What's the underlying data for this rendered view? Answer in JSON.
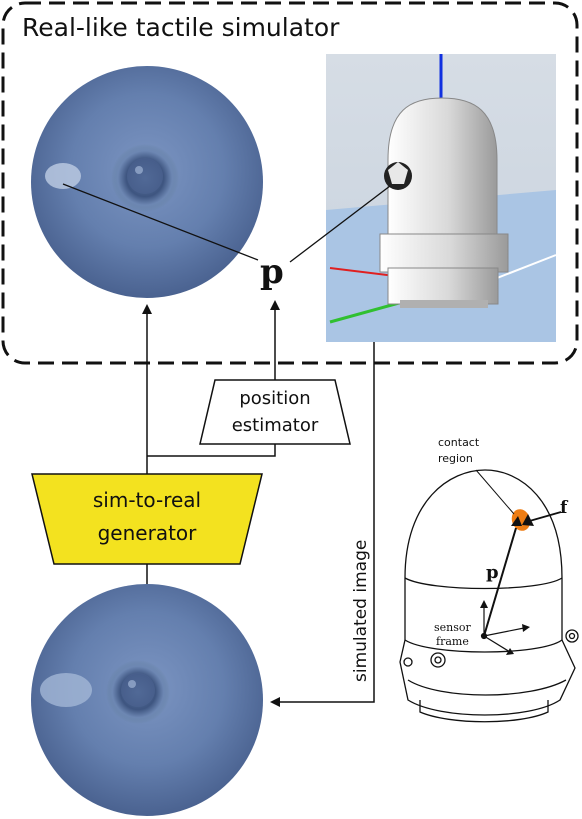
{
  "title": "Real-like tactile simulator",
  "symbol_p": "p",
  "position_estimator": {
    "line1": "position",
    "line2": "estimator"
  },
  "generator": {
    "line1": "sim-to-real",
    "line2": "generator"
  },
  "simulated_image_label": "simulated image",
  "sensor_diagram": {
    "contact_label_1": "contact",
    "contact_label_2": "region",
    "force_label": "f",
    "position_label": "p",
    "frame_label_1": "sensor",
    "frame_label_2": "frame"
  },
  "colors": {
    "generator_fill": "#f3e21f",
    "contact_orange": "#ee7d14",
    "tactile_blue": "#5f7bab",
    "sim_background": "#aac5e4"
  }
}
